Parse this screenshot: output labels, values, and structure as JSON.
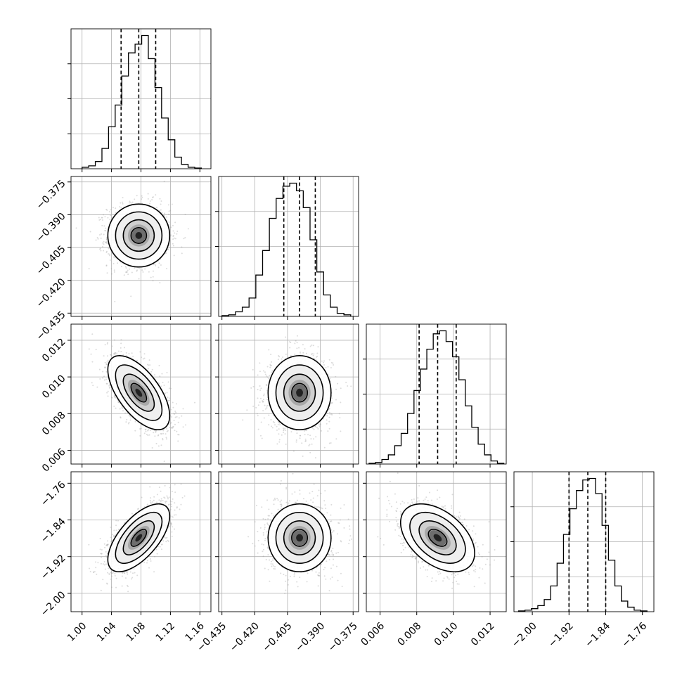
{
  "chart_data": {
    "type": "corner",
    "grid": true,
    "parameters": [
      {
        "name": "",
        "range": [
          0.985,
          1.175
        ],
        "ticks": [
          1.0,
          1.04,
          1.08,
          1.12,
          1.16
        ],
        "tick_labels": [
          "1.00",
          "1.04",
          "1.08",
          "1.12",
          "1.16"
        ],
        "mean": 1.077,
        "std": 0.021,
        "quantiles": [
          1.053,
          1.077,
          1.1
        ],
        "hist_bins": [
          1.0,
          1.009,
          1.018,
          1.027,
          1.036,
          1.045,
          1.054,
          1.063,
          1.072,
          1.081,
          1.09,
          1.099,
          1.108,
          1.117,
          1.126,
          1.135,
          1.144,
          1.153,
          1.162
        ],
        "hist_counts": [
          0.01,
          0.02,
          0.05,
          0.14,
          0.29,
          0.44,
          0.64,
          0.8,
          0.86,
          0.92,
          0.76,
          0.56,
          0.35,
          0.2,
          0.08,
          0.03,
          0.01,
          0.005
        ]
      },
      {
        "name": "",
        "range": [
          -0.4365,
          -0.3725
        ],
        "ticks": [
          -0.435,
          -0.42,
          -0.405,
          -0.39,
          -0.375
        ],
        "tick_labels": [
          "−0.435",
          "−0.420",
          "−0.405",
          "−0.390",
          "−0.375"
        ],
        "mean": -0.3995,
        "std": 0.0072,
        "quantiles": [
          -0.4067,
          -0.3995,
          -0.3923
        ],
        "hist_bins": [
          -0.435,
          -0.4319,
          -0.4288,
          -0.4257,
          -0.4226,
          -0.4195,
          -0.4164,
          -0.4133,
          -0.4102,
          -0.4071,
          -0.404,
          -0.4009,
          -0.3978,
          -0.3947,
          -0.3916,
          -0.3885,
          -0.3854,
          -0.3823,
          -0.3792,
          -0.3761
        ],
        "hist_counts": [
          0.005,
          0.01,
          0.03,
          0.06,
          0.12,
          0.27,
          0.43,
          0.64,
          0.77,
          0.85,
          0.87,
          0.82,
          0.71,
          0.5,
          0.29,
          0.14,
          0.06,
          0.02,
          0.01
        ]
      },
      {
        "name": "",
        "range": [
          0.00525,
          0.01288
        ],
        "ticks": [
          0.006,
          0.008,
          0.01,
          0.012
        ],
        "tick_labels": [
          "0.006",
          "0.008",
          "0.010",
          "0.012"
        ],
        "mean": 0.00914,
        "std": 0.00101,
        "quantiles": [
          0.00813,
          0.00914,
          0.01015
        ],
        "hist_bins": [
          0.0054,
          0.00575,
          0.0061,
          0.00645,
          0.0068,
          0.00715,
          0.0075,
          0.00785,
          0.0082,
          0.00855,
          0.0089,
          0.00925,
          0.0096,
          0.00995,
          0.0103,
          0.01065,
          0.011,
          0.01135,
          0.0117,
          0.01205,
          0.0124,
          0.01275
        ],
        "hist_counts": [
          0.005,
          0.01,
          0.03,
          0.06,
          0.12,
          0.2,
          0.33,
          0.48,
          0.62,
          0.75,
          0.85,
          0.87,
          0.8,
          0.7,
          0.55,
          0.38,
          0.24,
          0.13,
          0.06,
          0.02,
          0.005
        ]
      },
      {
        "name": "",
        "range": [
          -2.04,
          -1.735
        ],
        "ticks": [
          -2.0,
          -1.92,
          -1.84,
          -1.76
        ],
        "tick_labels": [
          "−2.00",
          "−1.92",
          "−1.84",
          "−1.76"
        ],
        "mean": -1.879,
        "std": 0.037,
        "quantiles": [
          -1.92,
          -1.879,
          -1.84
        ],
        "hist_bins": [
          -2.03,
          -2.016,
          -2.002,
          -1.988,
          -1.974,
          -1.96,
          -1.946,
          -1.932,
          -1.918,
          -1.904,
          -1.89,
          -1.876,
          -1.862,
          -1.848,
          -1.834,
          -1.82,
          -1.806,
          -1.792,
          -1.778,
          -1.764,
          -1.75
        ],
        "hist_counts": [
          0.005,
          0.01,
          0.02,
          0.04,
          0.08,
          0.17,
          0.32,
          0.51,
          0.68,
          0.8,
          0.87,
          0.88,
          0.78,
          0.57,
          0.34,
          0.17,
          0.07,
          0.03,
          0.01,
          0.005
        ]
      }
    ],
    "correlations": [
      [
        0,
        1,
        0.0
      ],
      [
        0,
        2,
        -0.62
      ],
      [
        1,
        2,
        0.0
      ],
      [
        0,
        3,
        0.64
      ],
      [
        1,
        3,
        0.0
      ],
      [
        2,
        3,
        -0.45
      ]
    ],
    "contour_levels_sigma": [
      0.5,
      1.0,
      1.5,
      2.0
    ]
  }
}
